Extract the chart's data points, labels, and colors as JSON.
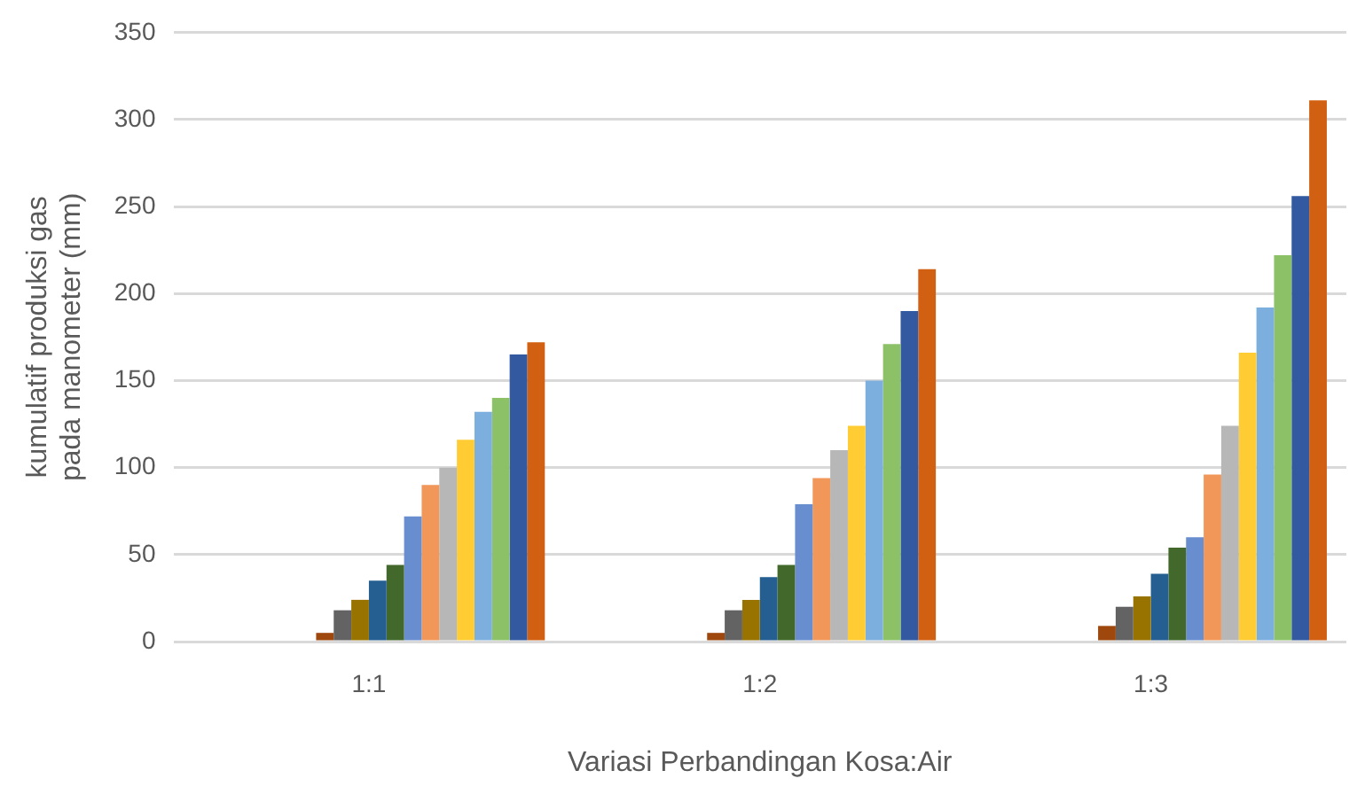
{
  "chart_data": {
    "type": "bar",
    "xlabel": "Variasi Perbandingan Kosa:Air",
    "ylabel": "kumulatif produksi gas pada manometer (mm)",
    "categories": [
      "1:1",
      "1:2",
      "1:3"
    ],
    "ylim": [
      0,
      350
    ],
    "yticks": [
      0,
      50,
      100,
      150,
      200,
      250,
      300,
      350
    ],
    "grid": "y",
    "legend": false,
    "series": [
      {
        "color": "#4472c4",
        "values": [
          0,
          0,
          0
        ]
      },
      {
        "color": "#ed7d31",
        "values": [
          0,
          0,
          0
        ]
      },
      {
        "color": "#a5a5a5",
        "values": [
          0,
          0,
          0
        ]
      },
      {
        "color": "#ffc000",
        "values": [
          0,
          0,
          0
        ]
      },
      {
        "color": "#5b9bd5",
        "values": [
          0,
          0,
          0
        ]
      },
      {
        "color": "#70ad47",
        "values": [
          0,
          0,
          0
        ]
      },
      {
        "color": "#264478",
        "values": [
          0,
          0,
          0
        ]
      },
      {
        "color": "#9e480e",
        "values": [
          5,
          5,
          9
        ]
      },
      {
        "color": "#636363",
        "values": [
          18,
          18,
          20
        ]
      },
      {
        "color": "#997300",
        "values": [
          24,
          24,
          26
        ]
      },
      {
        "color": "#255e91",
        "values": [
          35,
          37,
          39
        ]
      },
      {
        "color": "#43682b",
        "values": [
          44,
          44,
          54
        ]
      },
      {
        "color": "#698ed0",
        "values": [
          72,
          79,
          60
        ]
      },
      {
        "color": "#f1975a",
        "values": [
          90,
          94,
          96
        ]
      },
      {
        "color": "#b7b7b7",
        "values": [
          100,
          110,
          124
        ]
      },
      {
        "color": "#ffcd33",
        "values": [
          116,
          124,
          166
        ]
      },
      {
        "color": "#7cafdd",
        "values": [
          132,
          150,
          192
        ]
      },
      {
        "color": "#8cc168",
        "values": [
          140,
          171,
          222
        ]
      },
      {
        "color": "#335aa1",
        "values": [
          165,
          190,
          256
        ]
      },
      {
        "color": "#d26012",
        "values": [
          172,
          214,
          311
        ]
      }
    ]
  }
}
